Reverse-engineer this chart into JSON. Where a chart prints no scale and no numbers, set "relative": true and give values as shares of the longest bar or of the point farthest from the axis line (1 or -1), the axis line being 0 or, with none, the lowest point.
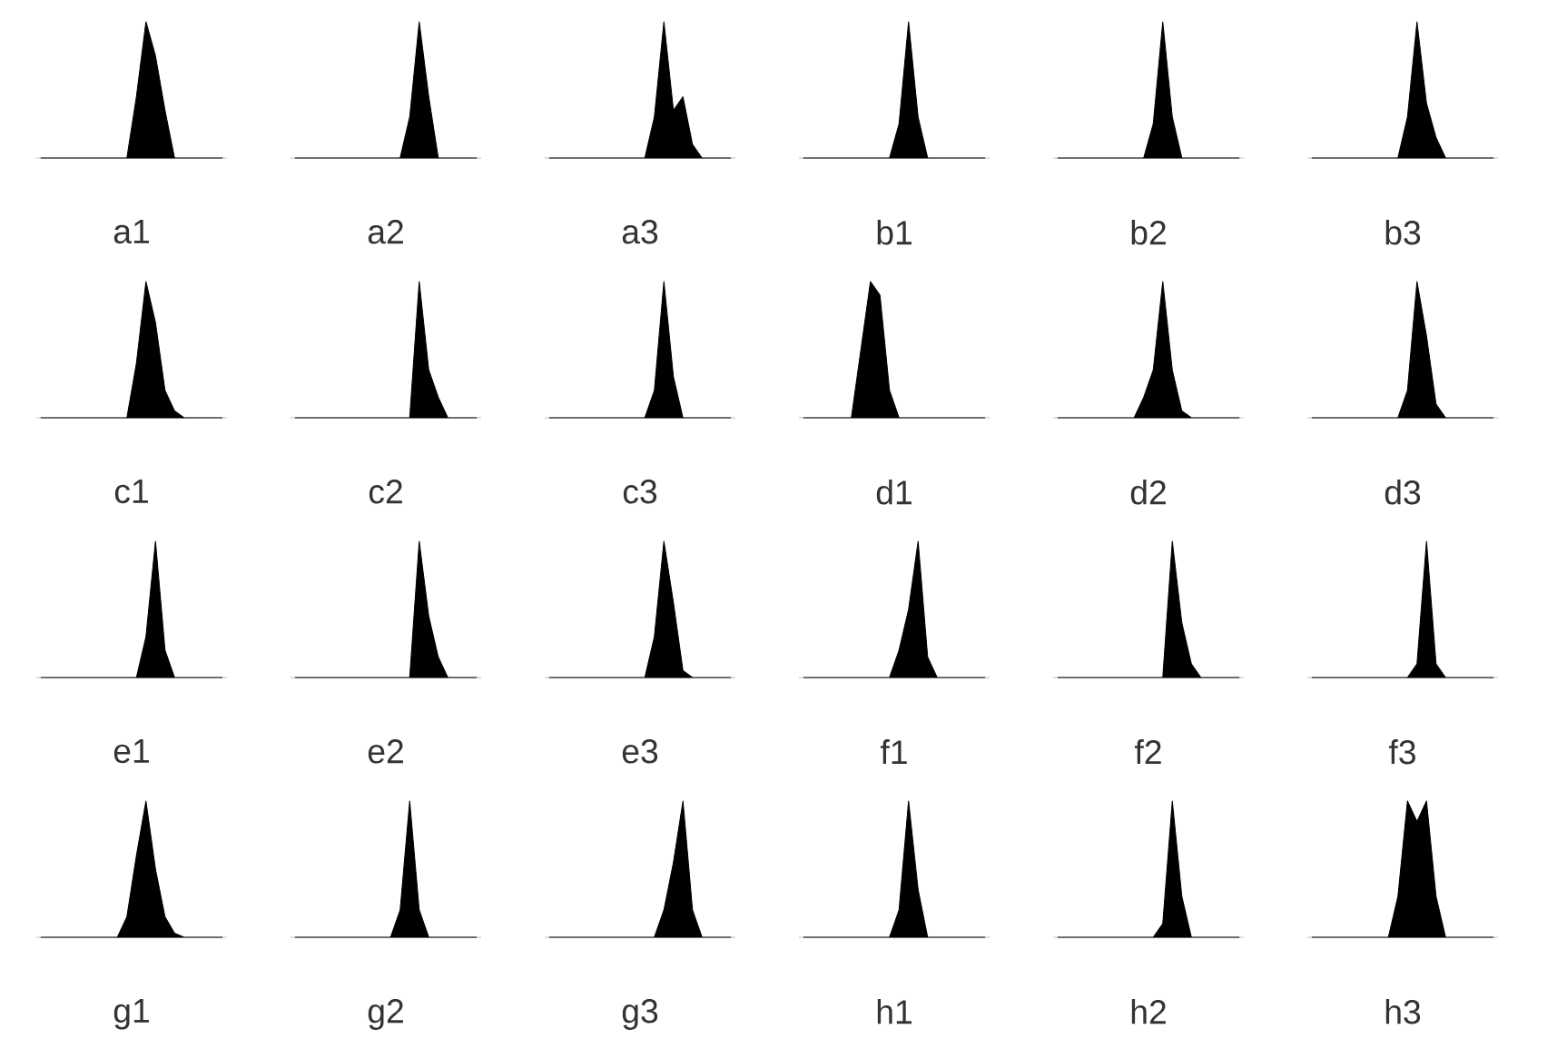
{
  "chart_data": [
    {
      "type": "area",
      "relative": true,
      "xlabel": "a1",
      "color": "#000000",
      "categories": [
        null,
        null,
        null,
        null,
        null,
        null,
        null,
        null,
        null,
        null,
        null,
        null,
        null,
        null,
        null,
        null,
        null,
        null,
        null,
        null
      ],
      "values": [
        0,
        0,
        0,
        0,
        0,
        0,
        0,
        0,
        0,
        0,
        0.45,
        1,
        0.75,
        0.35,
        0,
        0,
        0,
        0,
        0,
        0
      ]
    },
    {
      "type": "area",
      "relative": true,
      "xlabel": "a2",
      "color": "#000000",
      "categories": [
        null,
        null,
        null,
        null,
        null,
        null,
        null,
        null,
        null,
        null,
        null,
        null,
        null,
        null,
        null,
        null,
        null,
        null,
        null,
        null
      ],
      "values": [
        0,
        0,
        0,
        0,
        0,
        0,
        0,
        0,
        0,
        0,
        0,
        0,
        0.3,
        1,
        0.45,
        0,
        0,
        0,
        0,
        0
      ]
    },
    {
      "type": "area",
      "relative": true,
      "xlabel": "a3",
      "color": "#000000",
      "categories": [
        null,
        null,
        null,
        null,
        null,
        null,
        null,
        null,
        null,
        null,
        null,
        null,
        null,
        null,
        null,
        null,
        null,
        null,
        null,
        null
      ],
      "values": [
        0,
        0,
        0,
        0,
        0,
        0,
        0,
        0,
        0,
        0,
        0,
        0.3,
        1,
        0.35,
        0.45,
        0.1,
        0,
        0,
        0,
        0
      ]
    },
    {
      "type": "area",
      "relative": true,
      "xlabel": "b1",
      "color": "#000000",
      "categories": [
        null,
        null,
        null,
        null,
        null,
        null,
        null,
        null,
        null,
        null,
        null,
        null,
        null,
        null,
        null,
        null,
        null,
        null,
        null,
        null
      ],
      "values": [
        0,
        0,
        0,
        0,
        0,
        0,
        0,
        0,
        0,
        0,
        0.25,
        1,
        0.3,
        0,
        0,
        0,
        0,
        0,
        0,
        0
      ]
    },
    {
      "type": "area",
      "relative": true,
      "xlabel": "b2",
      "color": "#000000",
      "categories": [
        null,
        null,
        null,
        null,
        null,
        null,
        null,
        null,
        null,
        null,
        null,
        null,
        null,
        null,
        null,
        null,
        null,
        null,
        null,
        null
      ],
      "values": [
        0,
        0,
        0,
        0,
        0,
        0,
        0,
        0,
        0,
        0,
        0.25,
        1,
        0.3,
        0,
        0,
        0,
        0,
        0,
        0,
        0
      ]
    },
    {
      "type": "area",
      "relative": true,
      "xlabel": "b3",
      "color": "#000000",
      "categories": [
        null,
        null,
        null,
        null,
        null,
        null,
        null,
        null,
        null,
        null,
        null,
        null,
        null,
        null,
        null,
        null,
        null,
        null,
        null,
        null
      ],
      "values": [
        0,
        0,
        0,
        0,
        0,
        0,
        0,
        0,
        0,
        0,
        0.3,
        1,
        0.4,
        0.15,
        0,
        0,
        0,
        0,
        0,
        0
      ]
    },
    {
      "type": "area",
      "relative": true,
      "xlabel": "c1",
      "color": "#000000",
      "categories": [
        null,
        null,
        null,
        null,
        null,
        null,
        null,
        null,
        null,
        null,
        null,
        null,
        null,
        null,
        null,
        null,
        null,
        null,
        null,
        null
      ],
      "values": [
        0,
        0,
        0,
        0,
        0,
        0,
        0,
        0,
        0,
        0,
        0.4,
        1,
        0.7,
        0.2,
        0.05,
        0,
        0,
        0,
        0,
        0
      ]
    },
    {
      "type": "area",
      "relative": true,
      "xlabel": "c2",
      "color": "#000000",
      "categories": [
        null,
        null,
        null,
        null,
        null,
        null,
        null,
        null,
        null,
        null,
        null,
        null,
        null,
        null,
        null,
        null,
        null,
        null,
        null,
        null
      ],
      "values": [
        0,
        0,
        0,
        0,
        0,
        0,
        0,
        0,
        0,
        0,
        0,
        0,
        0,
        1,
        0.35,
        0.15,
        0,
        0,
        0,
        0
      ]
    },
    {
      "type": "area",
      "relative": true,
      "xlabel": "c3",
      "color": "#000000",
      "categories": [
        null,
        null,
        null,
        null,
        null,
        null,
        null,
        null,
        null,
        null,
        null,
        null,
        null,
        null,
        null,
        null,
        null,
        null,
        null,
        null
      ],
      "values": [
        0,
        0,
        0,
        0,
        0,
        0,
        0,
        0,
        0,
        0,
        0,
        0.2,
        1,
        0.3,
        0,
        0,
        0,
        0,
        0,
        0
      ]
    },
    {
      "type": "area",
      "relative": true,
      "xlabel": "d1",
      "color": "#000000",
      "categories": [
        null,
        null,
        null,
        null,
        null,
        null,
        null,
        null,
        null,
        null,
        null,
        null,
        null,
        null,
        null,
        null,
        null,
        null,
        null,
        null
      ],
      "values": [
        0,
        0,
        0,
        0,
        0,
        0,
        0.5,
        1,
        0.9,
        0.2,
        0,
        0,
        0,
        0,
        0,
        0,
        0,
        0,
        0,
        0
      ]
    },
    {
      "type": "area",
      "relative": true,
      "xlabel": "d2",
      "color": "#000000",
      "categories": [
        null,
        null,
        null,
        null,
        null,
        null,
        null,
        null,
        null,
        null,
        null,
        null,
        null,
        null,
        null,
        null,
        null,
        null,
        null,
        null
      ],
      "values": [
        0,
        0,
        0,
        0,
        0,
        0,
        0,
        0,
        0,
        0.15,
        0.35,
        1,
        0.35,
        0.05,
        0,
        0,
        0,
        0,
        0,
        0
      ]
    },
    {
      "type": "area",
      "relative": true,
      "xlabel": "d3",
      "color": "#000000",
      "categories": [
        null,
        null,
        null,
        null,
        null,
        null,
        null,
        null,
        null,
        null,
        null,
        null,
        null,
        null,
        null,
        null,
        null,
        null,
        null,
        null
      ],
      "values": [
        0,
        0,
        0,
        0,
        0,
        0,
        0,
        0,
        0,
        0,
        0.2,
        1,
        0.6,
        0.1,
        0,
        0,
        0,
        0,
        0,
        0
      ]
    },
    {
      "type": "area",
      "relative": true,
      "xlabel": "e1",
      "color": "#000000",
      "categories": [
        null,
        null,
        null,
        null,
        null,
        null,
        null,
        null,
        null,
        null,
        null,
        null,
        null,
        null,
        null,
        null,
        null,
        null,
        null,
        null
      ],
      "values": [
        0,
        0,
        0,
        0,
        0,
        0,
        0,
        0,
        0,
        0,
        0,
        0.3,
        1,
        0.2,
        0,
        0,
        0,
        0,
        0,
        0
      ]
    },
    {
      "type": "area",
      "relative": true,
      "xlabel": "e2",
      "color": "#000000",
      "categories": [
        null,
        null,
        null,
        null,
        null,
        null,
        null,
        null,
        null,
        null,
        null,
        null,
        null,
        null,
        null,
        null,
        null,
        null,
        null,
        null
      ],
      "values": [
        0,
        0,
        0,
        0,
        0,
        0,
        0,
        0,
        0,
        0,
        0,
        0,
        0,
        1,
        0.45,
        0.15,
        0,
        0,
        0,
        0
      ]
    },
    {
      "type": "area",
      "relative": true,
      "xlabel": "e3",
      "color": "#000000",
      "categories": [
        null,
        null,
        null,
        null,
        null,
        null,
        null,
        null,
        null,
        null,
        null,
        null,
        null,
        null,
        null,
        null,
        null,
        null,
        null,
        null
      ],
      "values": [
        0,
        0,
        0,
        0,
        0,
        0,
        0,
        0,
        0,
        0,
        0,
        0.3,
        1,
        0.55,
        0.05,
        0,
        0,
        0,
        0,
        0
      ]
    },
    {
      "type": "area",
      "relative": true,
      "xlabel": "f1",
      "color": "#000000",
      "categories": [
        null,
        null,
        null,
        null,
        null,
        null,
        null,
        null,
        null,
        null,
        null,
        null,
        null,
        null,
        null,
        null,
        null,
        null,
        null,
        null
      ],
      "values": [
        0,
        0,
        0,
        0,
        0,
        0,
        0,
        0,
        0,
        0,
        0.2,
        0.5,
        1,
        0.15,
        0,
        0,
        0,
        0,
        0,
        0
      ]
    },
    {
      "type": "area",
      "relative": true,
      "xlabel": "f2",
      "color": "#000000",
      "categories": [
        null,
        null,
        null,
        null,
        null,
        null,
        null,
        null,
        null,
        null,
        null,
        null,
        null,
        null,
        null,
        null,
        null,
        null,
        null,
        null
      ],
      "values": [
        0,
        0,
        0,
        0,
        0,
        0,
        0,
        0,
        0,
        0,
        0,
        0,
        1,
        0.4,
        0.1,
        0,
        0,
        0,
        0,
        0
      ]
    },
    {
      "type": "area",
      "relative": true,
      "xlabel": "f3",
      "color": "#000000",
      "categories": [
        null,
        null,
        null,
        null,
        null,
        null,
        null,
        null,
        null,
        null,
        null,
        null,
        null,
        null,
        null,
        null,
        null,
        null,
        null,
        null
      ],
      "values": [
        0,
        0,
        0,
        0,
        0,
        0,
        0,
        0,
        0,
        0,
        0,
        0.1,
        1,
        0.1,
        0,
        0,
        0,
        0,
        0,
        0
      ]
    },
    {
      "type": "area",
      "relative": true,
      "xlabel": "g1",
      "color": "#000000",
      "categories": [
        null,
        null,
        null,
        null,
        null,
        null,
        null,
        null,
        null,
        null,
        null,
        null,
        null,
        null,
        null,
        null,
        null,
        null,
        null,
        null
      ],
      "values": [
        0,
        0,
        0,
        0,
        0,
        0,
        0,
        0,
        0,
        0.15,
        0.6,
        1,
        0.5,
        0.15,
        0.03,
        0,
        0,
        0,
        0,
        0
      ]
    },
    {
      "type": "area",
      "relative": true,
      "xlabel": "g2",
      "color": "#000000",
      "categories": [
        null,
        null,
        null,
        null,
        null,
        null,
        null,
        null,
        null,
        null,
        null,
        null,
        null,
        null,
        null,
        null,
        null,
        null,
        null,
        null
      ],
      "values": [
        0,
        0,
        0,
        0,
        0,
        0,
        0,
        0,
        0,
        0,
        0,
        0.2,
        1,
        0.2,
        0,
        0,
        0,
        0,
        0,
        0
      ]
    },
    {
      "type": "area",
      "relative": true,
      "xlabel": "g3",
      "color": "#000000",
      "categories": [
        null,
        null,
        null,
        null,
        null,
        null,
        null,
        null,
        null,
        null,
        null,
        null,
        null,
        null,
        null,
        null,
        null,
        null,
        null,
        null
      ],
      "values": [
        0,
        0,
        0,
        0,
        0,
        0,
        0,
        0,
        0,
        0,
        0,
        0,
        0.2,
        0.55,
        1,
        0.2,
        0,
        0,
        0,
        0
      ]
    },
    {
      "type": "area",
      "relative": true,
      "xlabel": "h1",
      "color": "#000000",
      "categories": [
        null,
        null,
        null,
        null,
        null,
        null,
        null,
        null,
        null,
        null,
        null,
        null,
        null,
        null,
        null,
        null,
        null,
        null,
        null,
        null
      ],
      "values": [
        0,
        0,
        0,
        0,
        0,
        0,
        0,
        0,
        0,
        0,
        0.2,
        1,
        0.35,
        0,
        0,
        0,
        0,
        0,
        0,
        0
      ]
    },
    {
      "type": "area",
      "relative": true,
      "xlabel": "h2",
      "color": "#000000",
      "categories": [
        null,
        null,
        null,
        null,
        null,
        null,
        null,
        null,
        null,
        null,
        null,
        null,
        null,
        null,
        null,
        null,
        null,
        null,
        null,
        null
      ],
      "values": [
        0,
        0,
        0,
        0,
        0,
        0,
        0,
        0,
        0,
        0,
        0,
        0.1,
        1,
        0.3,
        0,
        0,
        0,
        0,
        0,
        0
      ]
    },
    {
      "type": "area",
      "relative": true,
      "xlabel": "h3",
      "color": "#000000",
      "categories": [
        null,
        null,
        null,
        null,
        null,
        null,
        null,
        null,
        null,
        null,
        null,
        null,
        null,
        null,
        null,
        null,
        null,
        null,
        null,
        null
      ],
      "values": [
        0,
        0,
        0,
        0,
        0,
        0,
        0,
        0,
        0,
        0.3,
        1,
        0.85,
        1,
        0.3,
        0,
        0,
        0,
        0,
        0,
        0
      ]
    }
  ]
}
